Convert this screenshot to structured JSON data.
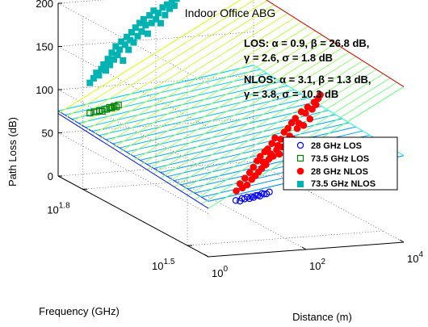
{
  "chart_data": {
    "type": "3d-surface-scatter",
    "title": "Indoor Office ABG",
    "xlabel": "Distance (m)",
    "ylabel": "Frequency (GHz)",
    "zlabel": "Path Loss (dB)",
    "x_ticks": [
      {
        "base": "10",
        "exp": "0"
      },
      {
        "base": "10",
        "exp": "2"
      },
      {
        "base": "10",
        "exp": "4"
      }
    ],
    "y_ticks": [
      {
        "base": "10",
        "exp": "1.5"
      },
      {
        "base": "10",
        "exp": "1.8"
      }
    ],
    "z_ticks": [
      "0",
      "50",
      "100",
      "150",
      "200"
    ],
    "zlim": [
      0,
      200
    ],
    "xlim_log10": [
      0,
      4
    ],
    "ylim_log10": [
      1.44,
      1.87
    ],
    "grid": true,
    "models": {
      "LOS": {
        "alpha": 0.9,
        "beta": 26.8,
        "gamma": 2.6,
        "sigma": 1.8
      },
      "NLOS": {
        "alpha": 3.1,
        "beta": 1.3,
        "gamma": 3.8,
        "sigma": 10.3
      }
    },
    "annotations": [
      {
        "prefix": "LOS:",
        "line1": " α = 0.9, β = 26.8 dB,",
        "line2": "γ = 2.6, σ = 1.8 dB"
      },
      {
        "prefix": "NLOS:",
        "line1": " α = 3.1, β = 1.3 dB,",
        "line2": "γ = 3.8, σ = 10.3 dB"
      }
    ],
    "legend_position": "right",
    "series": [
      {
        "name": "28 GHz LOS",
        "marker": "circle-open",
        "color": "#0000ff",
        "freq_ghz": 28,
        "points": [
          [
            4.1,
            61
          ],
          [
            5.0,
            60
          ],
          [
            5.5,
            63
          ],
          [
            6.2,
            62
          ],
          [
            7.0,
            64
          ],
          [
            7.8,
            62
          ],
          [
            8.6,
            64
          ],
          [
            9.5,
            63
          ],
          [
            10.5,
            65
          ],
          [
            11.6,
            65
          ],
          [
            12.8,
            64
          ],
          [
            14.1,
            67
          ],
          [
            15.5,
            66
          ],
          [
            17.5,
            66
          ],
          [
            20.0,
            68
          ]
        ]
      },
      {
        "name": "73.5 GHz LOS",
        "marker": "square-open",
        "color": "#008000",
        "freq_ghz": 73.5,
        "points": [
          [
            4.2,
            71
          ],
          [
            5.1,
            72
          ],
          [
            5.8,
            72
          ],
          [
            6.6,
            73
          ],
          [
            7.5,
            72
          ],
          [
            8.4,
            74
          ],
          [
            9.3,
            74
          ],
          [
            10.6,
            76
          ],
          [
            11.7,
            75
          ],
          [
            13.2,
            77
          ],
          [
            14.6,
            76
          ],
          [
            16.1,
            78
          ]
        ]
      },
      {
        "name": "28 GHz NLOS",
        "marker": "circle-filled",
        "color": "#ff0000",
        "freq_ghz": 28,
        "points": [
          [
            4.2,
            72
          ],
          [
            5.0,
            80
          ],
          [
            5.6,
            75
          ],
          [
            6.3,
            86
          ],
          [
            7.0,
            78
          ],
          [
            7.9,
            92
          ],
          [
            8.7,
            84
          ],
          [
            9.4,
            98
          ],
          [
            10.3,
            88
          ],
          [
            11.2,
            105
          ],
          [
            12.0,
            92
          ],
          [
            13.0,
            110
          ],
          [
            14.0,
            96
          ],
          [
            15.0,
            103
          ],
          [
            16.0,
            115
          ],
          [
            17.0,
            100
          ],
          [
            18.5,
            118
          ],
          [
            19.5,
            106
          ],
          [
            21.0,
            112
          ],
          [
            22.5,
            124
          ],
          [
            24.0,
            109
          ],
          [
            26.0,
            130
          ],
          [
            28.0,
            116
          ],
          [
            30.0,
            121
          ],
          [
            32.0,
            111
          ],
          [
            34.0,
            128
          ],
          [
            37.0,
            119
          ],
          [
            40.0,
            136
          ],
          [
            44.0,
            125
          ],
          [
            48.0,
            140
          ],
          [
            52.0,
            131
          ],
          [
            57.0,
            146
          ],
          [
            62.0,
            127
          ],
          [
            68.0,
            151
          ],
          [
            74.0,
            139
          ],
          [
            80.0,
            145
          ],
          [
            90.0,
            158
          ],
          [
            100.0,
            142
          ],
          [
            110.0,
            156
          ],
          [
            121.0,
            163
          ],
          [
            135.0,
            149
          ],
          [
            150.0,
            160
          ],
          [
            165.0,
            168
          ],
          [
            180.0,
            165
          ],
          [
            200.0,
            172
          ],
          [
            220.0,
            176
          ]
        ]
      },
      {
        "name": "73.5 GHz NLOS",
        "marker": "square-filled",
        "color": "#00b3b3",
        "freq_ghz": 73.5,
        "points": [
          [
            4.2,
            106
          ],
          [
            5.0,
            111
          ],
          [
            5.7,
            117
          ],
          [
            6.4,
            114
          ],
          [
            7.2,
            121
          ],
          [
            8.0,
            126
          ],
          [
            8.9,
            119
          ],
          [
            9.8,
            132
          ],
          [
            10.8,
            125
          ],
          [
            11.8,
            139
          ],
          [
            13.0,
            131
          ],
          [
            14.2,
            146
          ],
          [
            15.5,
            136
          ],
          [
            17.0,
            142
          ],
          [
            18.5,
            151
          ],
          [
            20.0,
            129
          ],
          [
            22.0,
            147
          ],
          [
            24.0,
            156
          ],
          [
            26.0,
            141
          ],
          [
            28.0,
            152
          ],
          [
            30.0,
            161
          ],
          [
            33.0,
            149
          ],
          [
            36.0,
            166
          ],
          [
            40.0,
            156
          ],
          [
            44.0,
            171
          ],
          [
            48.0,
            161
          ],
          [
            53.0,
            175
          ],
          [
            58.0,
            168
          ],
          [
            64.0,
            158
          ],
          [
            70.0,
            179
          ],
          [
            77.0,
            170
          ],
          [
            85.0,
            184
          ],
          [
            95.0,
            174
          ],
          [
            105.0,
            181
          ],
          [
            118.0,
            169
          ],
          [
            130.0,
            187
          ],
          [
            145.0,
            178
          ],
          [
            160.0,
            190
          ],
          [
            180.0,
            185
          ],
          [
            200.0,
            193
          ],
          [
            225.0,
            188
          ],
          [
            250.0,
            196
          ]
        ]
      }
    ]
  }
}
